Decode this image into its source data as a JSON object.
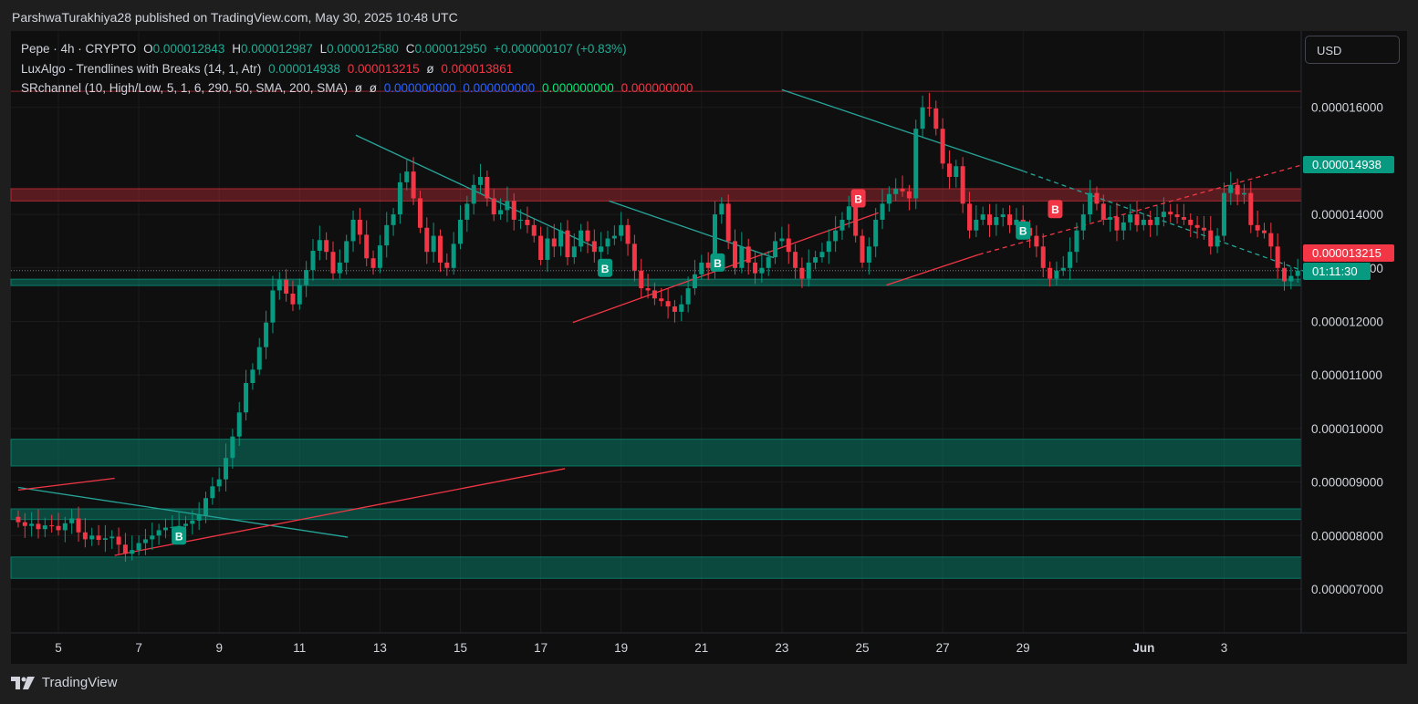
{
  "header": {
    "publisher": "ParshwaTurakhiya28 published on TradingView.com, May 30, 2025 10:48 UTC"
  },
  "legend": {
    "symbol": "Pepe · 4h · CRYPTO",
    "o_label": "O",
    "o_value": "0.000012843",
    "h_label": "H",
    "h_value": "0.000012987",
    "l_label": "L",
    "l_value": "0.000012580",
    "c_label": "C",
    "c_value": "0.000012950",
    "change": "+0.000000107 (+0.83%)",
    "luxalgo_name": "LuxAlgo - Trendlines with Breaks (14, 1, Atr)",
    "luxalgo_v1": "0.000014938",
    "luxalgo_v2": "0.000013215",
    "luxalgo_na": "ø",
    "luxalgo_v3": "0.000013861",
    "sr_name": "SRchannel (10, High/Low, 5, 1, 6, 290, 50, SMA, 200, SMA)",
    "sr_na1": "ø",
    "sr_na2": "ø",
    "sr_v1": "0.000000000",
    "sr_v2": "0.000000000",
    "sr_v3": "0.000000000",
    "sr_v4": "0.000000000"
  },
  "toolbar": {
    "currency": "USD"
  },
  "price_labels": {
    "upper": "0.000014938",
    "lower": "0.000013215",
    "countdown": "01:11:30"
  },
  "footer": {
    "brand": "TradingView"
  },
  "colors": {
    "up": "#089981",
    "down": "#f23645",
    "trend_down": "#26a69a",
    "trend_up": "#f23645"
  },
  "chart_data": {
    "type": "candlestick",
    "interval": "4h",
    "ylim": [
      6.6e-06,
      1.7e-05
    ],
    "y_ticks": [
      "0.000007000",
      "0.000008000",
      "0.000009000",
      "0.000010000",
      "0.000011000",
      "0.000012000",
      "0.000013000",
      "0.000014000",
      "0.000016000"
    ],
    "x_ticks": [
      "5",
      "7",
      "9",
      "11",
      "13",
      "15",
      "17",
      "19",
      "21",
      "23",
      "25",
      "27",
      "29",
      "Jun",
      "3"
    ],
    "x_tick_days": [
      5,
      7,
      9,
      11,
      13,
      15,
      17,
      19,
      21,
      23,
      25,
      27,
      29,
      32,
      34
    ],
    "xlim_days": [
      3.9,
      36.5
    ],
    "sr_zones": [
      {
        "low": 1.425e-05,
        "high": 1.448e-05,
        "color": "red"
      },
      {
        "low": 1.267e-05,
        "high": 1.279e-05,
        "color": "green"
      },
      {
        "low": 9.3e-06,
        "high": 9.8e-06,
        "color": "green"
      },
      {
        "low": 8.3e-06,
        "high": 8.5e-06,
        "color": "green"
      },
      {
        "low": 7.2e-06,
        "high": 7.6e-06,
        "color": "green"
      }
    ],
    "resistance_line": 1.63e-05,
    "trendlines": [
      {
        "kind": "down",
        "x1": 4.0,
        "y1": 8.9e-06,
        "x2": 12.2,
        "y2": 7.97e-06,
        "dashed": false
      },
      {
        "kind": "up",
        "x1": 4.0,
        "y1": 8.85e-06,
        "x2": 6.4,
        "y2": 9.07e-06,
        "dashed": false
      },
      {
        "kind": "up",
        "x1": 6.4,
        "y1": 7.63e-06,
        "x2": 17.6,
        "y2": 9.25e-06,
        "dashed": false
      },
      {
        "kind": "down",
        "x1": 12.4,
        "y1": 1.548e-05,
        "x2": 18.4,
        "y2": 1.337e-05,
        "dashed": false
      },
      {
        "kind": "up",
        "x1": 17.8,
        "y1": 1.198e-05,
        "x2": 25.4,
        "y2": 1.403e-05,
        "dashed": false
      },
      {
        "kind": "down",
        "x1": 18.7,
        "y1": 1.425e-05,
        "x2": 22.8,
        "y2": 1.319e-05,
        "dashed": false
      },
      {
        "kind": "down",
        "x1": 23.0,
        "y1": 1.633e-05,
        "x2": 29.0,
        "y2": 1.481e-05,
        "dashed": false
      },
      {
        "kind": "down",
        "x1": 29.0,
        "y1": 1.481e-05,
        "x2": 36.4,
        "y2": 1.283e-05,
        "dashed": true
      },
      {
        "kind": "up",
        "x1": 25.6,
        "y1": 1.268e-05,
        "x2": 27.9,
        "y2": 1.325e-05,
        "dashed": false
      },
      {
        "kind": "up",
        "x1": 27.9,
        "y1": 1.325e-05,
        "x2": 36.4,
        "y2": 1.502e-05,
        "dashed": true
      }
    ],
    "signals": [
      {
        "type": "buy",
        "day": 8.0,
        "price": 8e-06,
        "label": "B"
      },
      {
        "type": "buy",
        "day": 18.6,
        "price": 1.3e-05,
        "label": "B"
      },
      {
        "type": "buy",
        "day": 21.4,
        "price": 1.31e-05,
        "label": "B"
      },
      {
        "type": "buy",
        "day": 29.0,
        "price": 1.37e-05,
        "label": "B"
      },
      {
        "type": "break",
        "day": 24.9,
        "price": 1.43e-05,
        "label": "B"
      },
      {
        "type": "break",
        "day": 29.8,
        "price": 1.41e-05,
        "label": "B"
      }
    ],
    "closes": [
      8.25e-06,
      8.18e-06,
      8.22e-06,
      8.12e-06,
      8.19e-06,
      8.18e-06,
      8.1e-06,
      8.23e-06,
      8.32e-06,
      8.06e-06,
      7.93e-06,
      8e-06,
      7.92e-06,
      7.95e-06,
      7.98e-06,
      7.83e-06,
      7.66e-06,
      7.73e-06,
      7.86e-06,
      7.93e-06,
      8e-06,
      8.1e-06,
      8.15e-06,
      8.16e-06,
      8.18e-06,
      8.22e-06,
      8.28e-06,
      8.38e-06,
      8.7e-06,
      8.92e-06,
      9.05e-06,
      9.45e-06,
      9.85e-06,
      1.03e-05,
      1.085e-05,
      1.11e-05,
      1.152e-05,
      1.198e-05,
      1.258e-05,
      1.278e-05,
      1.252e-05,
      1.232e-05,
      1.268e-05,
      1.296e-05,
      1.332e-05,
      1.352e-05,
      1.33e-05,
      1.29e-05,
      1.31e-05,
      1.35e-05,
      1.39e-05,
      1.362e-05,
      1.318e-05,
      1.3e-05,
      1.342e-05,
      1.38e-05,
      1.4e-05,
      1.46e-05,
      1.48e-05,
      1.43e-05,
      1.375e-05,
      1.33e-05,
      1.36e-05,
      1.31e-05,
      1.3e-05,
      1.345e-05,
      1.39e-05,
      1.42e-05,
      1.455e-05,
      1.47e-05,
      1.43e-05,
      1.4e-05,
      1.408e-05,
      1.425e-05,
      1.39e-05,
      1.39e-05,
      1.38e-05,
      1.36e-05,
      1.315e-05,
      1.355e-05,
      1.34e-05,
      1.37e-05,
      1.32e-05,
      1.34e-05,
      1.37e-05,
      1.35e-05,
      1.33e-05,
      1.34e-05,
      1.355e-05,
      1.36e-05,
      1.38e-05,
      1.345e-05,
      1.295e-05,
      1.262e-05,
      1.258e-05,
      1.243e-05,
      1.238e-05,
      1.228e-05,
      1.218e-05,
      1.232e-05,
      1.262e-05,
      1.288e-05,
      1.31e-05,
      1.3e-05,
      1.4e-05,
      1.42e-05,
      1.35e-05,
      1.3e-05,
      1.34e-05,
      1.31e-05,
      1.29e-05,
      1.3e-05,
      1.32e-05,
      1.35e-05,
      1.355e-05,
      1.33e-05,
      1.3e-05,
      1.28e-05,
      1.31e-05,
      1.32e-05,
      1.33e-05,
      1.35e-05,
      1.37e-05,
      1.39e-05,
      1.415e-05,
      1.36e-05,
      1.31e-05,
      1.34e-05,
      1.39e-05,
      1.42e-05,
      1.438e-05,
      1.448e-05,
      1.443e-05,
      1.43e-05,
      1.56e-05,
      1.6e-05,
      1.598e-05,
      1.56e-05,
      1.495e-05,
      1.47e-05,
      1.49e-05,
      1.42e-05,
      1.37e-05,
      1.39e-05,
      1.4e-05,
      1.38e-05,
      1.395e-05,
      1.4e-05,
      1.38e-05,
      1.39e-05,
      1.375e-05,
      1.36e-05,
      1.34e-05,
      1.3e-05,
      1.28e-05,
      1.295e-05,
      1.3e-05,
      1.33e-05,
      1.37e-05,
      1.4e-05,
      1.44e-05,
      1.42e-05,
      1.39e-05,
      1.395e-05,
      1.37e-05,
      1.385e-05,
      1.4e-05,
      1.38e-05,
      1.39e-05,
      1.38e-05,
      1.395e-05,
      1.405e-05,
      1.4e-05,
      1.395e-05,
      1.39e-05,
      1.38e-05,
      1.375e-05,
      1.37e-05,
      1.34e-05,
      1.36e-05,
      1.44e-05,
      1.455e-05,
      1.437e-05,
      1.44e-05,
      1.38e-05,
      1.37e-05,
      1.365e-05,
      1.34e-05,
      1.3e-05,
      1.275e-05,
      1.285e-05,
      1.295e-05
    ]
  }
}
